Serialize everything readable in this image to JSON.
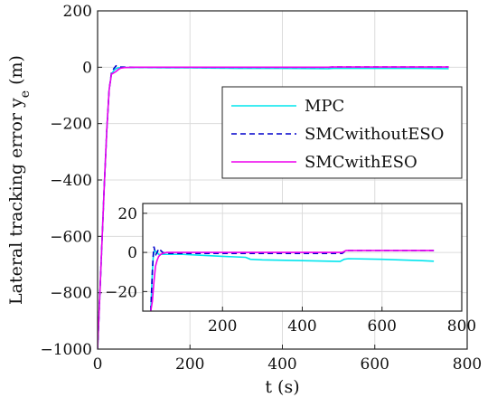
{
  "chart_data": [
    {
      "type": "line",
      "title": "",
      "xlabel": "t (s)",
      "ylabel_main": "Lateral tracking error y",
      "ylabel_sub": "e",
      "ylabel_unit": " (m)",
      "xlim": [
        0,
        800
      ],
      "ylim": [
        -1000,
        200
      ],
      "xticks": [
        0,
        200,
        400,
        600,
        800
      ],
      "yticks": [
        -1000,
        -800,
        -600,
        -400,
        -200,
        0,
        200
      ],
      "grid": true,
      "legend_position": "right",
      "series": [
        {
          "name": "MPC",
          "color": "#00e5ee",
          "style": "solid",
          "x": [
            0,
            5,
            10,
            15,
            20,
            25,
            30,
            35,
            40,
            45,
            50,
            60,
            80,
            100,
            150,
            200,
            260,
            300,
            400,
            500,
            510,
            600,
            700,
            760
          ],
          "y": [
            -1000,
            -800,
            -600,
            -400,
            -220,
            -80,
            -25,
            -12,
            -5,
            -2,
            -1,
            -1,
            -1,
            -1,
            -2,
            -2,
            -3,
            -4,
            -4,
            -5,
            -4,
            -4,
            -4,
            -5
          ]
        },
        {
          "name": "SMCwithoutESO",
          "color": "#0000cc",
          "style": "dashed",
          "x": [
            0,
            5,
            10,
            15,
            20,
            25,
            30,
            35,
            40,
            45,
            50,
            60,
            80,
            100,
            150,
            200,
            260,
            300,
            400,
            500,
            510,
            600,
            700,
            760
          ],
          "y": [
            -1000,
            -800,
            -600,
            -400,
            -220,
            -80,
            -20,
            -5,
            5,
            3,
            1,
            0,
            0,
            0,
            0,
            0,
            0,
            0,
            0,
            0,
            1,
            1,
            1,
            1
          ]
        },
        {
          "name": "SMCwithESO",
          "color": "#ee00ee",
          "style": "solid",
          "x": [
            0,
            5,
            10,
            15,
            20,
            25,
            30,
            35,
            40,
            45,
            50,
            60,
            80,
            100,
            150,
            200,
            260,
            300,
            400,
            500,
            510,
            600,
            700,
            760
          ],
          "y": [
            -1000,
            -800,
            -600,
            -400,
            -220,
            -80,
            -25,
            -20,
            -15,
            -8,
            -3,
            -1,
            0,
            0,
            0,
            0,
            0,
            0,
            0,
            0,
            1,
            1,
            1,
            1
          ]
        }
      ]
    },
    {
      "type": "line",
      "title": "",
      "inset": true,
      "xlim": [
        0,
        800
      ],
      "ylim": [
        -30,
        25
      ],
      "xticks": [
        200,
        400,
        600,
        800
      ],
      "yticks": [
        -20,
        0,
        20
      ],
      "grid": true,
      "series": [
        {
          "name": "MPC",
          "color": "#00e5ee",
          "style": "solid",
          "x": [
            20,
            22,
            24,
            26,
            28,
            30,
            35,
            40,
            50,
            60,
            80,
            100,
            150,
            200,
            258,
            270,
            300,
            400,
            495,
            505,
            515,
            600,
            700,
            730
          ],
          "y": [
            -30,
            -20,
            -10,
            -3,
            0,
            1,
            0,
            -1,
            -1,
            -1,
            -1,
            -1,
            -1.5,
            -2,
            -2.5,
            -3.5,
            -3.8,
            -4.2,
            -4.6,
            -3.5,
            -3.2,
            -3.5,
            -4.2,
            -4.5
          ]
        },
        {
          "name": "SMCwithoutESO",
          "color": "#0000cc",
          "style": "dashed",
          "x": [
            20,
            22,
            24,
            26,
            28,
            30,
            33,
            36,
            40,
            45,
            50,
            60,
            80,
            100,
            150,
            200,
            300,
            400,
            500,
            510,
            600,
            700,
            730
          ],
          "y": [
            -30,
            -20,
            -10,
            -2,
            3,
            1,
            -1,
            0,
            2,
            1,
            0,
            -0.5,
            -0.5,
            -0.5,
            -0.5,
            -0.5,
            -0.5,
            -0.5,
            -0.5,
            1,
            1,
            1,
            1
          ]
        },
        {
          "name": "SMCwithESO",
          "color": "#ee00ee",
          "style": "solid",
          "x": [
            20,
            24,
            28,
            32,
            36,
            40,
            45,
            50,
            60,
            80,
            100,
            150,
            200,
            300,
            400,
            500,
            510,
            600,
            700,
            730
          ],
          "y": [
            -30,
            -25,
            -15,
            -7,
            -4,
            -2,
            -1,
            -0.5,
            0,
            0,
            0,
            0,
            0,
            0,
            0,
            0,
            1,
            1,
            1,
            1
          ]
        }
      ]
    }
  ]
}
